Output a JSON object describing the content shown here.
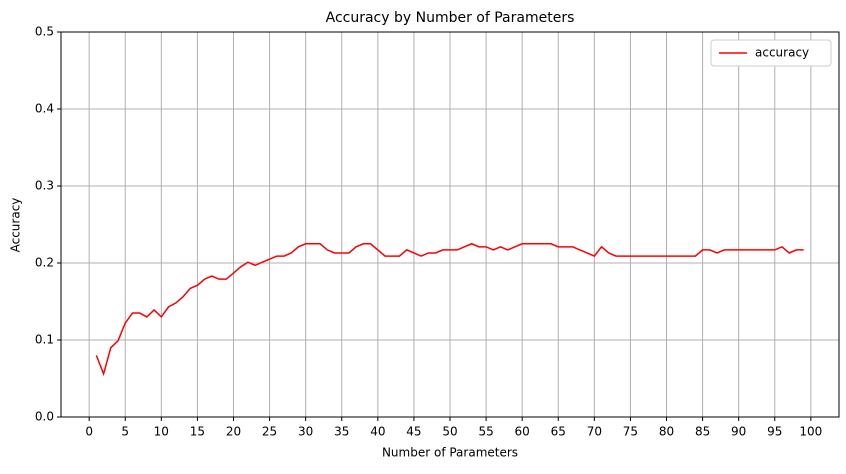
{
  "chart_data": {
    "type": "line",
    "title": "Accuracy by Number of Parameters",
    "x_label": "Number of Parameters",
    "y_label": "Accuracy",
    "x": [
      1,
      2,
      3,
      4,
      5,
      6,
      7,
      8,
      9,
      10,
      11,
      12,
      13,
      14,
      15,
      16,
      17,
      18,
      19,
      20,
      21,
      22,
      23,
      24,
      25,
      26,
      27,
      28,
      29,
      30,
      31,
      32,
      33,
      34,
      35,
      36,
      37,
      38,
      39,
      40,
      41,
      42,
      43,
      44,
      45,
      46,
      47,
      48,
      49,
      50,
      51,
      52,
      53,
      54,
      55,
      56,
      57,
      58,
      59,
      60,
      61,
      62,
      63,
      64,
      65,
      66,
      67,
      68,
      69,
      70,
      71,
      72,
      73,
      74,
      75,
      76,
      77,
      78,
      79,
      80,
      81,
      82,
      83,
      84,
      85,
      86,
      87,
      88,
      89,
      90,
      91,
      92,
      93,
      94,
      95,
      96,
      97,
      98,
      99
    ],
    "series": [
      {
        "name": "accuracy",
        "color": "#ff0000",
        "values": [
          0.08,
          0.056,
          0.09,
          0.099,
          0.122,
          0.135,
          0.135,
          0.13,
          0.139,
          0.13,
          0.143,
          0.148,
          0.156,
          0.167,
          0.171,
          0.179,
          0.183,
          0.179,
          0.179,
          0.187,
          0.195,
          0.201,
          0.197,
          0.201,
          0.205,
          0.209,
          0.209,
          0.213,
          0.221,
          0.225,
          0.225,
          0.225,
          0.217,
          0.213,
          0.213,
          0.213,
          0.221,
          0.225,
          0.225,
          0.217,
          0.209,
          0.209,
          0.209,
          0.217,
          0.213,
          0.209,
          0.213,
          0.213,
          0.217,
          0.217,
          0.217,
          0.221,
          0.225,
          0.221,
          0.221,
          0.217,
          0.221,
          0.217,
          0.221,
          0.225,
          0.225,
          0.225,
          0.225,
          0.225,
          0.221,
          0.221,
          0.221,
          0.217,
          0.213,
          0.209,
          0.221,
          0.213,
          0.209,
          0.209,
          0.209,
          0.209,
          0.209,
          0.209,
          0.209,
          0.209,
          0.209,
          0.209,
          0.209,
          0.209,
          0.217,
          0.217,
          0.213,
          0.217,
          0.217,
          0.217,
          0.217,
          0.217,
          0.217,
          0.217,
          0.217,
          0.221,
          0.213,
          0.217,
          0.217
        ]
      }
    ],
    "xlim": [
      -3.9,
      103.9
    ],
    "xticks": [
      0,
      5,
      10,
      15,
      20,
      25,
      30,
      35,
      40,
      45,
      50,
      55,
      60,
      65,
      70,
      75,
      80,
      85,
      90,
      95,
      100
    ],
    "ylim": [
      0,
      0.5
    ],
    "yticks": [
      {
        "value": 0,
        "label": "0.0"
      },
      0.1,
      0.2,
      0.3,
      0.4,
      0.5
    ],
    "grid": true,
    "legend": "upper-right"
  }
}
